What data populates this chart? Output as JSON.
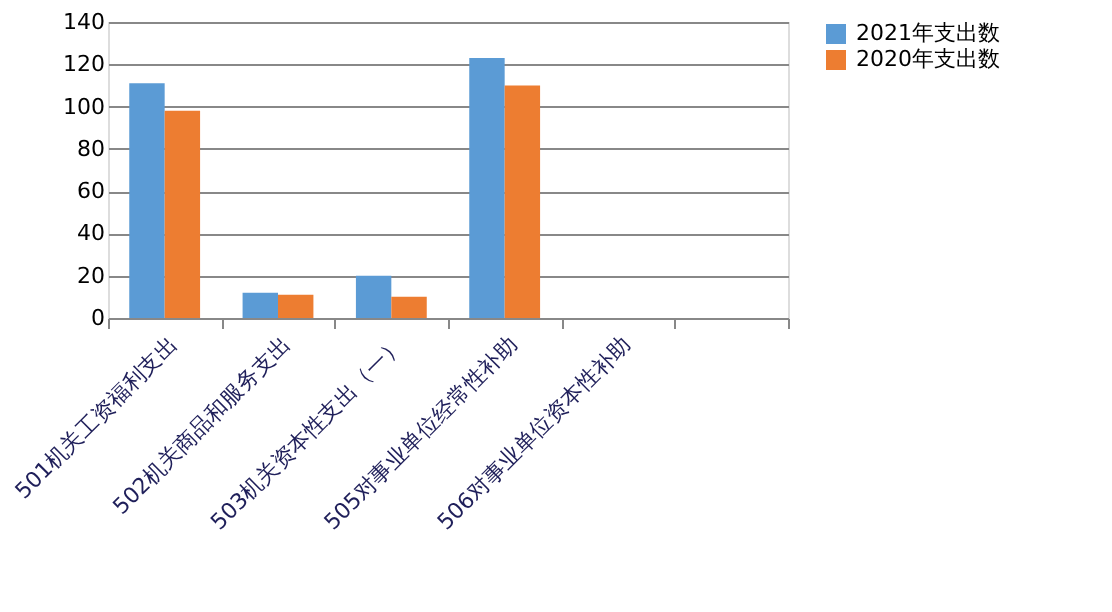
{
  "chart_data": {
    "type": "bar",
    "categories": [
      "501机关工资福利支出",
      "502机关商品和服务支出",
      "503机关资本性支出（一）",
      "505对事业单位经常性补助",
      "506对事业单位资本性补助",
      null
    ],
    "series": [
      {
        "name": "2021年支出数",
        "color": "#5b9bd5",
        "values": [
          111,
          12,
          20,
          123,
          null,
          null
        ]
      },
      {
        "name": "2020年支出数",
        "color": "#ed7d31",
        "values": [
          98,
          11,
          10,
          110,
          null,
          null
        ]
      }
    ],
    "ylim": [
      0,
      140
    ],
    "yticks": [
      0,
      20,
      40,
      60,
      80,
      100,
      120,
      140
    ],
    "grid": "y",
    "legend": "right"
  }
}
